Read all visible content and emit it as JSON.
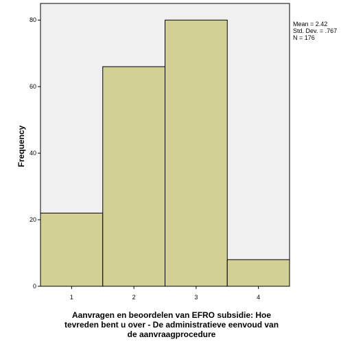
{
  "chart_data": {
    "type": "bar",
    "title": "",
    "xlabel_lines": [
      "Aanvragen en beoordelen van EFRO subsidie: Hoe",
      "tevreden bent u over - De administratieve eenvoud van",
      "de aanvraagprocedure"
    ],
    "ylabel": "Frequency",
    "bins": [
      {
        "from": 0.5,
        "to": 1.5,
        "value": 22
      },
      {
        "from": 1.5,
        "to": 2.5,
        "value": 66
      },
      {
        "from": 2.5,
        "to": 3.5,
        "value": 80
      },
      {
        "from": 3.5,
        "to": 4.5,
        "value": 8
      }
    ],
    "xlim": [
      0.5,
      4.5
    ],
    "ylim": [
      0,
      85
    ],
    "xticks": [
      1,
      2,
      3,
      4
    ],
    "yticks": [
      0,
      20,
      40,
      60,
      80
    ],
    "grid": false,
    "bar_color": "#d3d096",
    "plot_background": "#f0f0f0",
    "stats": [
      "Mean = 2.42",
      "Std. Dev. = .767",
      "N = 176"
    ]
  }
}
